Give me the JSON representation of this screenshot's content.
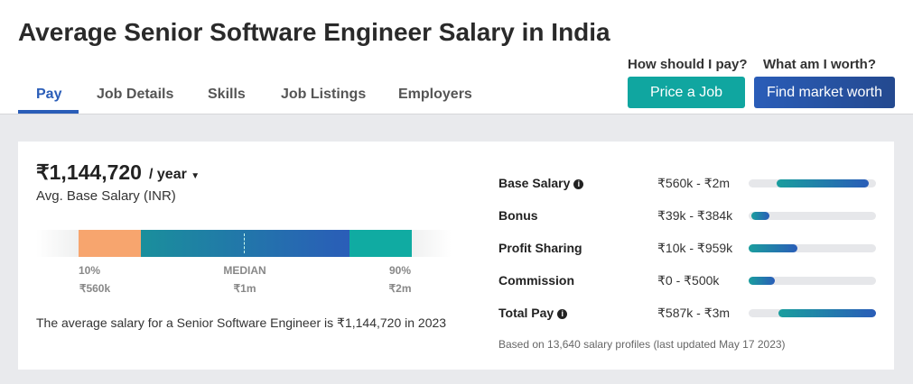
{
  "header": {
    "title": "Average Senior Software Engineer Salary in India",
    "tabs": [
      "Pay",
      "Job Details",
      "Skills",
      "Job Listings",
      "Employers"
    ],
    "cta": [
      {
        "question": "How should I pay?",
        "button": "Price a Job"
      },
      {
        "question": "What am I worth?",
        "button": "Find market worth"
      }
    ]
  },
  "summary": {
    "amount": "₹1,144,720",
    "period": "/ year",
    "subtitle": "Avg. Base Salary (INR)",
    "distribution": [
      {
        "label": "10%",
        "value": "₹560k"
      },
      {
        "label": "MEDIAN",
        "value": "₹1m"
      },
      {
        "label": "90%",
        "value": "₹2m"
      }
    ],
    "sentence": "The average salary for a Senior Software Engineer is ₹1,144,720 in 2023"
  },
  "pay_breakdown": {
    "rows": [
      {
        "label": "Base Salary",
        "range": "₹560k - ₹2m"
      },
      {
        "label": "Bonus",
        "range": "₹39k - ₹384k"
      },
      {
        "label": "Profit Sharing",
        "range": "₹10k - ₹959k"
      },
      {
        "label": "Commission",
        "range": "₹0 - ₹500k"
      },
      {
        "label": "Total Pay",
        "range": "₹587k - ₹3m"
      }
    ],
    "footnote": "Based on 13,640 salary profiles (last updated May 17 2023)"
  }
}
